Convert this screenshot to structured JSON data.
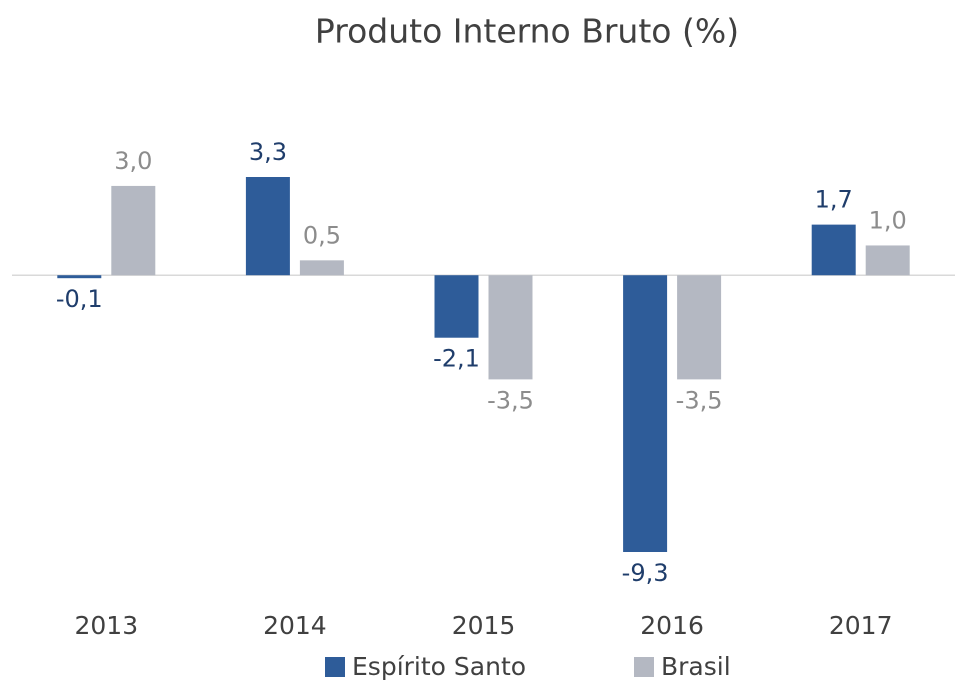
{
  "chart_data": {
    "type": "bar",
    "title": "Produto Interno Bruto (%)",
    "categories": [
      "2013",
      "2014",
      "2015",
      "2016",
      "2017"
    ],
    "series": [
      {
        "name": "Espírito Santo",
        "color": "#2e5c99",
        "values": [
          -0.1,
          3.3,
          -2.1,
          -9.3,
          1.7
        ],
        "value_labels": [
          "-0,1",
          "3,3",
          "-2,1",
          "-9,3",
          "1,7"
        ]
      },
      {
        "name": "Brasil",
        "color": "#b4b8c2",
        "values": [
          3.0,
          0.5,
          -3.5,
          -3.5,
          1.0
        ],
        "value_labels": [
          "3,0",
          "0,5",
          "-3,5",
          "-3,5",
          "1,0"
        ]
      }
    ],
    "legend": "bottom"
  }
}
